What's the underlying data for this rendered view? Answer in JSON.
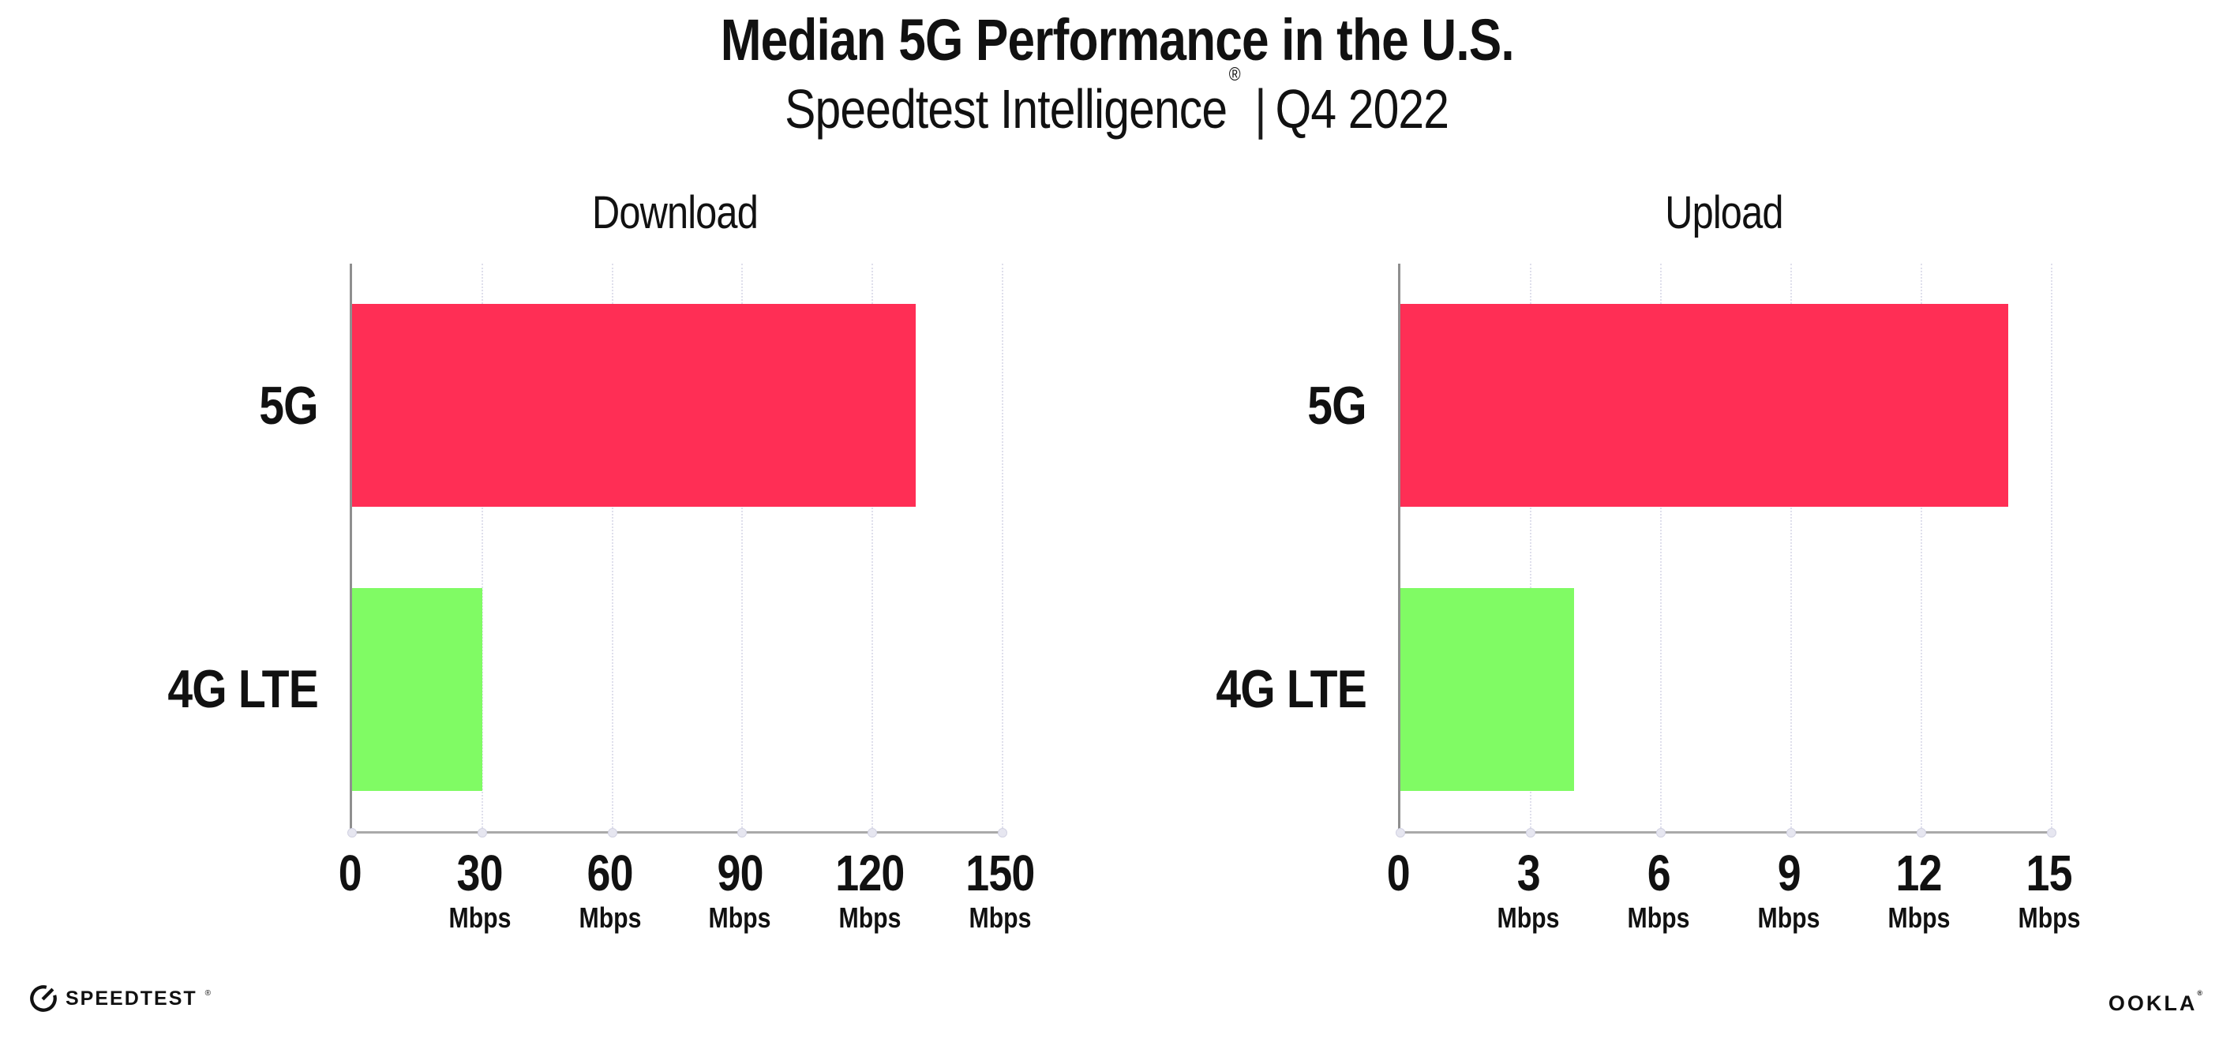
{
  "header": {
    "title": "Median 5G Performance in the U.S.",
    "subtitle_brand": "Speedtest Intelligence",
    "subtitle_mark": "®",
    "subtitle_separator": "|",
    "subtitle_period": "Q4 2022"
  },
  "chart_data": [
    {
      "type": "bar",
      "orientation": "horizontal",
      "title": "Download",
      "categories": [
        "5G",
        "4G LTE"
      ],
      "values": [
        130,
        30
      ],
      "unit": "Mbps",
      "xlim": [
        0,
        150
      ],
      "ticks": [
        0,
        30,
        60,
        90,
        120,
        150
      ],
      "tick_unit": "Mbps",
      "bar_colors": [
        "#FF2E55",
        "#80FB64"
      ],
      "grid": "dotted-vertical",
      "legend": "none"
    },
    {
      "type": "bar",
      "orientation": "horizontal",
      "title": "Upload",
      "categories": [
        "5G",
        "4G LTE"
      ],
      "values": [
        14,
        4
      ],
      "unit": "Mbps",
      "xlim": [
        0,
        15
      ],
      "ticks": [
        0,
        3,
        6,
        9,
        12,
        15
      ],
      "tick_unit": "Mbps",
      "bar_colors": [
        "#FF2E55",
        "#80FB64"
      ],
      "grid": "dotted-vertical",
      "legend": "none"
    }
  ],
  "footer": {
    "speedtest_label": "SPEEDTEST",
    "speedtest_mark": "®",
    "ookla_label": "OOKLA",
    "ookla_mark": "®"
  },
  "colors": {
    "bar_5g": "#FF2E55",
    "bar_4g_lte": "#80FB64",
    "axis": "#AAAAAA",
    "gridline": "#DFDFEC",
    "text": "#111111",
    "background": "#FFFFFF"
  }
}
